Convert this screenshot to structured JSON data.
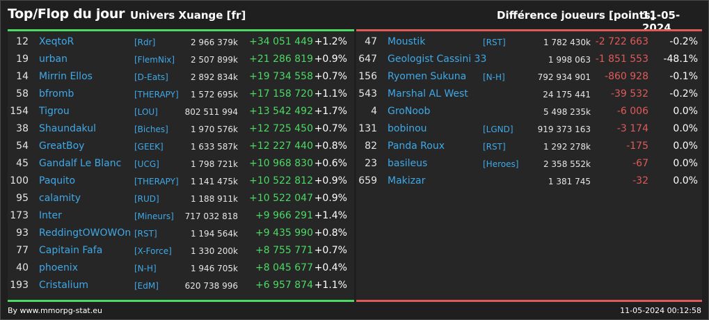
{
  "header": {
    "title": "Top/Flop du jour",
    "universe": "Univers Xuange [fr]",
    "subtitle": "Différence joueurs [points]",
    "date": "11-05-2024"
  },
  "colors": {
    "positive": "#4cd964",
    "negative": "#e05a5a",
    "link": "#3fa9e8"
  },
  "top": [
    {
      "rank": "12",
      "name": "XeqtoR",
      "ally": "[Rdr]",
      "points": "2 966 379k",
      "diff": "+34 051 449",
      "pct": "+1.2%"
    },
    {
      "rank": "19",
      "name": "urban",
      "ally": "[FlemNix]",
      "points": "2 507 899k",
      "diff": "+21 286 819",
      "pct": "+0.9%"
    },
    {
      "rank": "14",
      "name": "Mirrin Ellos",
      "ally": "[D-Eats]",
      "points": "2 892 834k",
      "diff": "+19 734 558",
      "pct": "+0.7%"
    },
    {
      "rank": "58",
      "name": "bfromb",
      "ally": "[THERAPY]",
      "points": "1 572 695k",
      "diff": "+17 158 720",
      "pct": "+1.1%"
    },
    {
      "rank": "154",
      "name": "Tigrou",
      "ally": "[LOU]",
      "points": "802 511 994",
      "diff": "+13 542 492",
      "pct": "+1.7%"
    },
    {
      "rank": "38",
      "name": "Shaundakul",
      "ally": "[Biches]",
      "points": "1 970 576k",
      "diff": "+12 725 450",
      "pct": "+0.7%"
    },
    {
      "rank": "54",
      "name": "GreatBoy",
      "ally": "[GEEK]",
      "points": "1 633 587k",
      "diff": "+12 227 440",
      "pct": "+0.8%"
    },
    {
      "rank": "45",
      "name": "Gandalf Le Blanc",
      "ally": "[UCG]",
      "points": "1 798 721k",
      "diff": "+10 968 830",
      "pct": "+0.6%"
    },
    {
      "rank": "100",
      "name": "Paquito",
      "ally": "[THERAPY]",
      "points": "1 141 475k",
      "diff": "+10 522 812",
      "pct": "+0.9%"
    },
    {
      "rank": "95",
      "name": "calamity",
      "ally": "[RUD]",
      "points": "1 188 911k",
      "diff": "+10 522 047",
      "pct": "+0.9%"
    },
    {
      "rank": "173",
      "name": "Inter",
      "ally": "[Mineurs]",
      "points": "717 032 818",
      "diff": "+9 966 291",
      "pct": "+1.4%"
    },
    {
      "rank": "93",
      "name": "ReddingtOWOWOn",
      "ally": "[RST]",
      "points": "1 194 564k",
      "diff": "+9 435 990",
      "pct": "+0.8%"
    },
    {
      "rank": "77",
      "name": "Capitain Fafa",
      "ally": "[X-Force]",
      "points": "1 330 200k",
      "diff": "+8 755 771",
      "pct": "+0.7%"
    },
    {
      "rank": "40",
      "name": "phoenix",
      "ally": "[N-H]",
      "points": "1 946 705k",
      "diff": "+8 045 677",
      "pct": "+0.4%"
    },
    {
      "rank": "193",
      "name": "Cristalium",
      "ally": "[EdM]",
      "points": "620 738 996",
      "diff": "+6 957 874",
      "pct": "+1.1%"
    }
  ],
  "flop": [
    {
      "rank": "47",
      "name": "Moustik",
      "ally": "[RST]",
      "points": "1 782 430k",
      "diff": "-2 722 663",
      "pct": "-0.2%"
    },
    {
      "rank": "647",
      "name": "Geologist Cassini 33",
      "ally": "",
      "points": "1 998 063",
      "diff": "-1 851 553",
      "pct": "-48.1%"
    },
    {
      "rank": "156",
      "name": "Ryomen Sukuna",
      "ally": "[N-H]",
      "points": "792 934 901",
      "diff": "-860 928",
      "pct": "-0.1%"
    },
    {
      "rank": "543",
      "name": "Marshal AL West",
      "ally": "",
      "points": "24 175 441",
      "diff": "-39 532",
      "pct": "-0.2%"
    },
    {
      "rank": "4",
      "name": "GroNoob",
      "ally": "",
      "points": "5 498 235k",
      "diff": "-6 006",
      "pct": "0.0%"
    },
    {
      "rank": "131",
      "name": "bobinou",
      "ally": "[LGND]",
      "points": "919 373 163",
      "diff": "-3 174",
      "pct": "0.0%"
    },
    {
      "rank": "82",
      "name": "Panda Roux",
      "ally": "[RST]",
      "points": "1 292 278k",
      "diff": "-175",
      "pct": "0.0%"
    },
    {
      "rank": "23",
      "name": "basileus",
      "ally": "[Heroes]",
      "points": "2 358 552k",
      "diff": "-67",
      "pct": "0.0%"
    },
    {
      "rank": "659",
      "name": "Makizar",
      "ally": "",
      "points": "1 381 745",
      "diff": "-32",
      "pct": "0.0%"
    }
  ],
  "footer": {
    "source": "By www.mmorpg-stat.eu",
    "timestamp": "11-05-2024 00:12:58"
  }
}
